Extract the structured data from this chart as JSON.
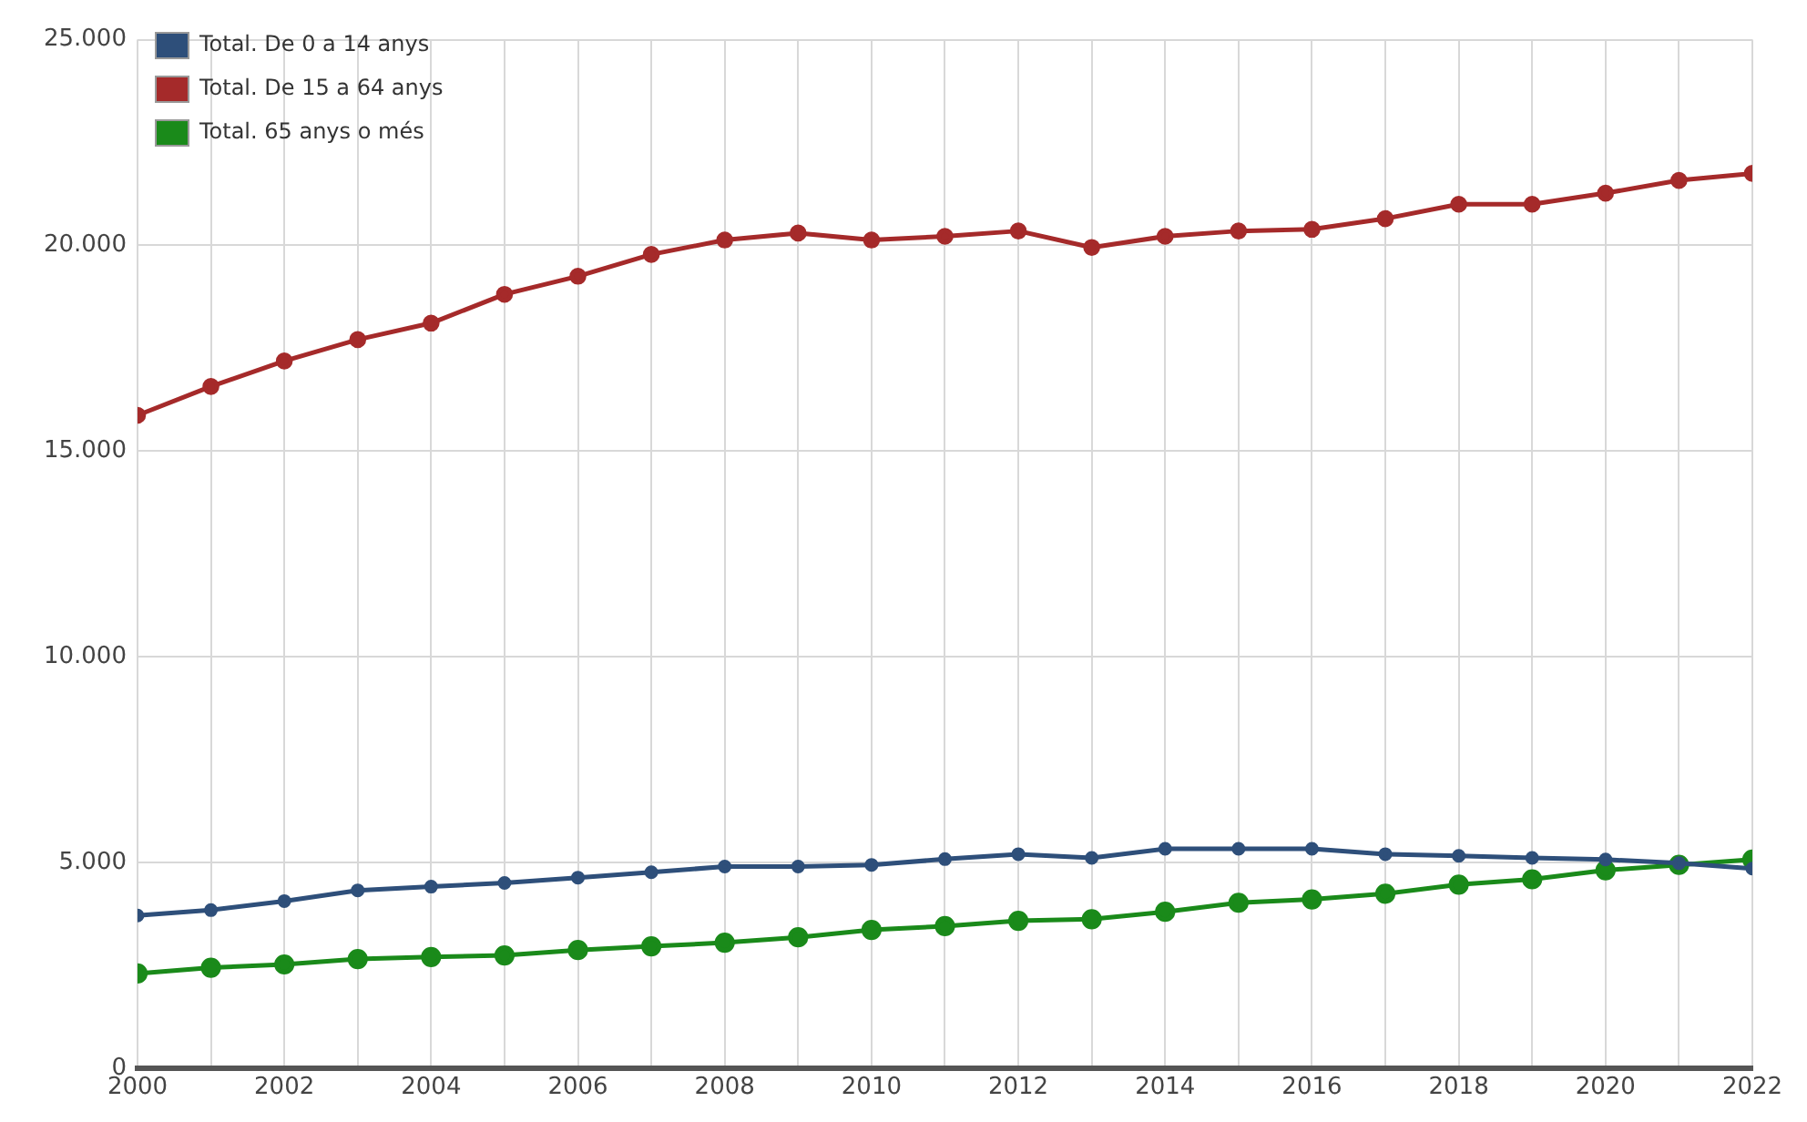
{
  "chart_data": {
    "type": "line",
    "x": [
      2000,
      2001,
      2002,
      2003,
      2004,
      2005,
      2006,
      2007,
      2008,
      2009,
      2010,
      2011,
      2012,
      2013,
      2014,
      2015,
      2016,
      2017,
      2018,
      2019,
      2020,
      2021,
      2022
    ],
    "series": [
      {
        "name": "Total. De 0 a 14 anys",
        "color": "#2e4f7a",
        "values": [
          3710,
          3840,
          4060,
          4320,
          4410,
          4500,
          4630,
          4760,
          4900,
          4900,
          4940,
          5080,
          5200,
          5110,
          5330,
          5330,
          5330,
          5200,
          5160,
          5110,
          5070,
          4980,
          4850
        ]
      },
      {
        "name": "Total. De 15 a 64 anys",
        "color": "#a52a2a",
        "values": [
          15870,
          16570,
          17190,
          17710,
          18110,
          18810,
          19250,
          19780,
          20130,
          20300,
          20130,
          20220,
          20350,
          19950,
          20220,
          20350,
          20390,
          20650,
          21000,
          21000,
          21270,
          21580,
          21750
        ]
      },
      {
        "name": "Total. 65 anys o més",
        "color": "#1a8a1a",
        "values": [
          2300,
          2440,
          2520,
          2650,
          2700,
          2740,
          2870,
          2960,
          3050,
          3180,
          3360,
          3450,
          3580,
          3620,
          3800,
          4020,
          4100,
          4240,
          4460,
          4590,
          4810,
          4940,
          5070
        ]
      }
    ],
    "xlim": [
      2000,
      2022
    ],
    "xticks": [
      2000,
      {
        "value": 2001,
        "label": null
      },
      2002,
      {
        "value": 2003,
        "label": null
      },
      2004,
      {
        "value": 2005,
        "label": null
      },
      2006,
      {
        "value": 2007,
        "label": null
      },
      2008,
      {
        "value": 2009,
        "label": null
      },
      2010,
      {
        "value": 2011,
        "label": null
      },
      2012,
      {
        "value": 2013,
        "label": null
      },
      2014,
      {
        "value": 2015,
        "label": null
      },
      2016,
      {
        "value": 2017,
        "label": null
      },
      2018,
      {
        "value": 2019,
        "label": null
      },
      2020,
      {
        "value": 2021,
        "label": null
      },
      2022
    ],
    "ylim": [
      0,
      25000
    ],
    "yticks": [
      0,
      {
        "value": 5000,
        "label": "5.000"
      },
      {
        "value": 10000,
        "label": "10.000"
      },
      {
        "value": 15000,
        "label": "15.000"
      },
      {
        "value": 20000,
        "label": "20.000"
      },
      {
        "value": 25000,
        "label": "25.000"
      }
    ],
    "grid": true,
    "legend": "top left",
    "marker": "circle",
    "line_style": "solid"
  }
}
